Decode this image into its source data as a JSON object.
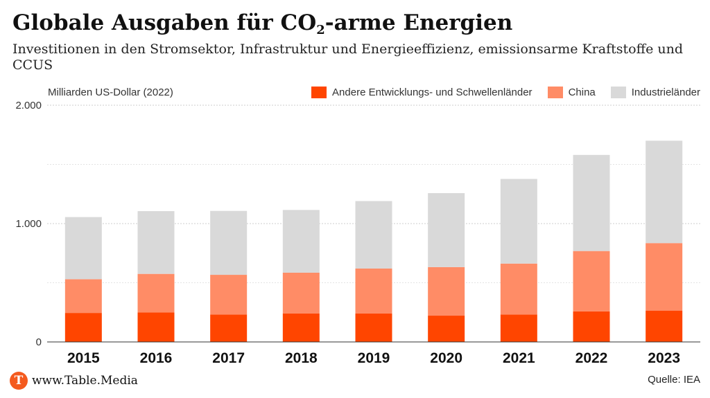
{
  "header": {
    "title_main": "Globale Ausgaben für CO",
    "title_sub": "2",
    "title_rest": "-arme Energien",
    "subtitle": "Investitionen in den Stromsektor, Infrastruktur und Energieeffizienz, emissionsarme Kraftstoffe und CCUS"
  },
  "footer": {
    "logo_letter": "T",
    "site": "www.Table.Media",
    "source": "Quelle: IEA"
  },
  "chart_data": {
    "type": "bar",
    "stacked": true,
    "ylabel": "Milliarden US-Dollar (2022)",
    "ylim": [
      0,
      2000
    ],
    "yticks": [
      0,
      1000,
      2000
    ],
    "ytick_labels": [
      "0",
      "1.000",
      "2.000"
    ],
    "grid": true,
    "legend_position": "top-right",
    "categories": [
      "2015",
      "2016",
      "2017",
      "2018",
      "2019",
      "2020",
      "2021",
      "2022",
      "2023"
    ],
    "series": [
      {
        "name": "Andere Entwicklungs- und Schwellenländer",
        "color": "#ff4500",
        "values": [
          245,
          250,
          232,
          240,
          240,
          222,
          232,
          258,
          265
        ]
      },
      {
        "name": "China",
        "color": "#ff8c66",
        "values": [
          285,
          325,
          335,
          345,
          380,
          410,
          430,
          510,
          570
        ]
      },
      {
        "name": "Industrieländer",
        "color": "#d9d9d9",
        "values": [
          525,
          530,
          540,
          530,
          570,
          625,
          715,
          812,
          865
        ]
      }
    ]
  }
}
